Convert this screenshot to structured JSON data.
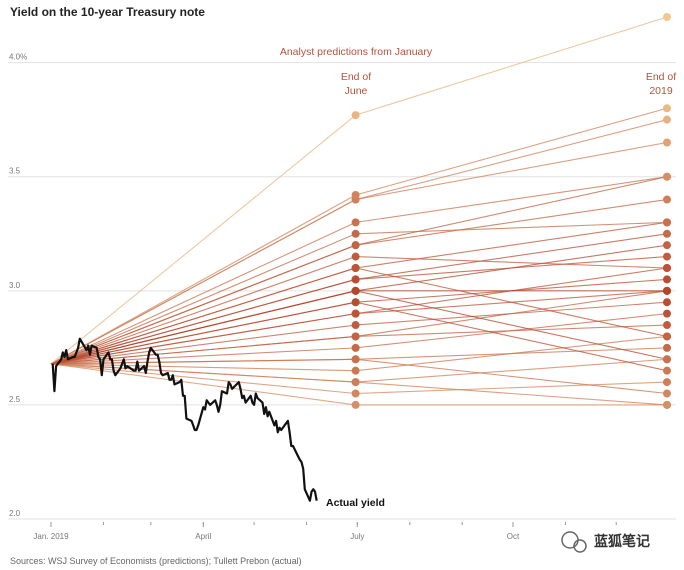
{
  "chart_data": {
    "type": "line",
    "title": "Yield on the 10-year Treasury note",
    "annotation_header": "Analyst predictions from January",
    "midyear_label_lines": [
      "End of",
      "June"
    ],
    "endyear_label_lines": [
      "End of",
      "2019"
    ],
    "actual_label": "Actual yield",
    "source": "Sources: WSJ Survey of Economists (predictions); Tullett Prebon (actual)",
    "y_ticks": [
      {
        "value": 2.0,
        "label": "2.0"
      },
      {
        "value": 2.5,
        "label": "2.5"
      },
      {
        "value": 3.0,
        "label": "3.0"
      },
      {
        "value": 3.5,
        "label": "3.5"
      },
      {
        "value": 4.0,
        "label": "4.0%"
      }
    ],
    "x_ticks": [
      {
        "value": "2019-01-01",
        "label": "Jan. 2019"
      },
      {
        "value": "2019-04-01",
        "label": "April"
      },
      {
        "value": "2019-07-01",
        "label": "July"
      },
      {
        "value": "2019-10-01",
        "label": "Oct"
      }
    ],
    "ylim": [
      2.0,
      4.2
    ],
    "xlim": [
      "2019-01-01",
      "2019-12-31"
    ],
    "grid": true,
    "start_date": "2019-01-01",
    "start_value": 2.68,
    "midyear_date": "2019-06-30",
    "endyear_date": "2019-12-31",
    "predictions": [
      {
        "june": 2.5,
        "dec": 2.5
      },
      {
        "june": 2.55,
        "dec": 2.6
      },
      {
        "june": 2.6,
        "dec": 2.7
      },
      {
        "june": 2.6,
        "dec": 2.5
      },
      {
        "june": 2.65,
        "dec": 2.8
      },
      {
        "june": 2.7,
        "dec": 2.75
      },
      {
        "june": 2.75,
        "dec": 2.9
      },
      {
        "june": 2.8,
        "dec": 2.85
      },
      {
        "june": 2.8,
        "dec": 3.0
      },
      {
        "june": 2.85,
        "dec": 2.95
      },
      {
        "june": 2.9,
        "dec": 3.0
      },
      {
        "june": 2.9,
        "dec": 3.1
      },
      {
        "june": 2.95,
        "dec": 3.05
      },
      {
        "june": 3.0,
        "dec": 3.0
      },
      {
        "june": 3.0,
        "dec": 3.2
      },
      {
        "june": 3.0,
        "dec": 2.7
      },
      {
        "june": 3.05,
        "dec": 3.15
      },
      {
        "june": 3.05,
        "dec": 3.25
      },
      {
        "june": 3.1,
        "dec": 3.3
      },
      {
        "june": 3.15,
        "dec": 3.1
      },
      {
        "june": 3.2,
        "dec": 3.4
      },
      {
        "june": 3.2,
        "dec": 3.5
      },
      {
        "june": 3.25,
        "dec": 3.3
      },
      {
        "june": 3.3,
        "dec": 3.5
      },
      {
        "june": 3.4,
        "dec": 3.65
      },
      {
        "june": 3.4,
        "dec": 3.75
      },
      {
        "june": 3.42,
        "dec": 3.8
      },
      {
        "june": 3.77,
        "dec": 4.2
      },
      {
        "june": 2.7,
        "dec": 2.55
      },
      {
        "june": 2.95,
        "dec": 2.65
      },
      {
        "june": 3.1,
        "dec": 2.8
      }
    ],
    "actual": [
      [
        "2019-01-02",
        2.68
      ],
      [
        "2019-01-03",
        2.56
      ],
      [
        "2019-01-04",
        2.67
      ],
      [
        "2019-01-07",
        2.7
      ],
      [
        "2019-01-08",
        2.73
      ],
      [
        "2019-01-09",
        2.71
      ],
      [
        "2019-01-10",
        2.74
      ],
      [
        "2019-01-11",
        2.7
      ],
      [
        "2019-01-14",
        2.71
      ],
      [
        "2019-01-15",
        2.71
      ],
      [
        "2019-01-16",
        2.73
      ],
      [
        "2019-01-17",
        2.75
      ],
      [
        "2019-01-18",
        2.79
      ],
      [
        "2019-01-22",
        2.74
      ],
      [
        "2019-01-23",
        2.76
      ],
      [
        "2019-01-24",
        2.72
      ],
      [
        "2019-01-25",
        2.76
      ],
      [
        "2019-01-28",
        2.75
      ],
      [
        "2019-01-29",
        2.71
      ],
      [
        "2019-01-30",
        2.7
      ],
      [
        "2019-01-31",
        2.63
      ],
      [
        "2019-02-01",
        2.7
      ],
      [
        "2019-02-04",
        2.73
      ],
      [
        "2019-02-05",
        2.7
      ],
      [
        "2019-02-06",
        2.7
      ],
      [
        "2019-02-07",
        2.65
      ],
      [
        "2019-02-08",
        2.63
      ],
      [
        "2019-02-11",
        2.66
      ],
      [
        "2019-02-12",
        2.68
      ],
      [
        "2019-02-13",
        2.7
      ],
      [
        "2019-02-14",
        2.66
      ],
      [
        "2019-02-15",
        2.67
      ],
      [
        "2019-02-19",
        2.65
      ],
      [
        "2019-02-20",
        2.65
      ],
      [
        "2019-02-21",
        2.69
      ],
      [
        "2019-02-22",
        2.65
      ],
      [
        "2019-02-25",
        2.67
      ],
      [
        "2019-02-26",
        2.64
      ],
      [
        "2019-02-27",
        2.69
      ],
      [
        "2019-02-28",
        2.73
      ],
      [
        "2019-03-01",
        2.75
      ],
      [
        "2019-03-04",
        2.72
      ],
      [
        "2019-03-05",
        2.72
      ],
      [
        "2019-03-06",
        2.69
      ],
      [
        "2019-03-07",
        2.64
      ],
      [
        "2019-03-08",
        2.63
      ],
      [
        "2019-03-11",
        2.64
      ],
      [
        "2019-03-12",
        2.61
      ],
      [
        "2019-03-13",
        2.61
      ],
      [
        "2019-03-14",
        2.63
      ],
      [
        "2019-03-15",
        2.59
      ],
      [
        "2019-03-18",
        2.6
      ],
      [
        "2019-03-19",
        2.61
      ],
      [
        "2019-03-20",
        2.54
      ],
      [
        "2019-03-21",
        2.54
      ],
      [
        "2019-03-22",
        2.44
      ],
      [
        "2019-03-25",
        2.43
      ],
      [
        "2019-03-26",
        2.41
      ],
      [
        "2019-03-27",
        2.39
      ],
      [
        "2019-03-28",
        2.39
      ],
      [
        "2019-03-29",
        2.41
      ],
      [
        "2019-04-01",
        2.49
      ],
      [
        "2019-04-02",
        2.48
      ],
      [
        "2019-04-03",
        2.52
      ],
      [
        "2019-04-04",
        2.51
      ],
      [
        "2019-04-05",
        2.5
      ],
      [
        "2019-04-08",
        2.52
      ],
      [
        "2019-04-09",
        2.5
      ],
      [
        "2019-04-10",
        2.47
      ],
      [
        "2019-04-11",
        2.5
      ],
      [
        "2019-04-12",
        2.56
      ],
      [
        "2019-04-15",
        2.55
      ],
      [
        "2019-04-16",
        2.6
      ],
      [
        "2019-04-17",
        2.59
      ],
      [
        "2019-04-18",
        2.57
      ],
      [
        "2019-04-22",
        2.6
      ],
      [
        "2019-04-23",
        2.57
      ],
      [
        "2019-04-24",
        2.53
      ],
      [
        "2019-04-25",
        2.54
      ],
      [
        "2019-04-26",
        2.51
      ],
      [
        "2019-04-29",
        2.54
      ],
      [
        "2019-04-30",
        2.51
      ],
      [
        "2019-05-01",
        2.5
      ],
      [
        "2019-05-02",
        2.55
      ],
      [
        "2019-05-03",
        2.53
      ],
      [
        "2019-05-06",
        2.51
      ],
      [
        "2019-05-07",
        2.46
      ],
      [
        "2019-05-08",
        2.49
      ],
      [
        "2019-05-09",
        2.45
      ],
      [
        "2019-05-10",
        2.47
      ],
      [
        "2019-05-13",
        2.41
      ],
      [
        "2019-05-14",
        2.43
      ],
      [
        "2019-05-15",
        2.38
      ],
      [
        "2019-05-16",
        2.4
      ],
      [
        "2019-05-17",
        2.39
      ],
      [
        "2019-05-20",
        2.42
      ],
      [
        "2019-05-21",
        2.43
      ],
      [
        "2019-05-22",
        2.38
      ],
      [
        "2019-05-23",
        2.32
      ],
      [
        "2019-05-24",
        2.32
      ],
      [
        "2019-05-28",
        2.26
      ],
      [
        "2019-05-29",
        2.25
      ],
      [
        "2019-05-30",
        2.22
      ],
      [
        "2019-05-31",
        2.13
      ],
      [
        "2019-06-03",
        2.08
      ],
      [
        "2019-06-04",
        2.12
      ],
      [
        "2019-06-05",
        2.13
      ],
      [
        "2019-06-06",
        2.12
      ],
      [
        "2019-06-07",
        2.08
      ]
    ]
  },
  "watermark": {
    "text": "蓝狐笔记"
  },
  "colors": {
    "actual_line": "#111111",
    "prediction_light": "#f0c890",
    "prediction_dark": "#b5462c",
    "annotation": "#b5533a"
  }
}
